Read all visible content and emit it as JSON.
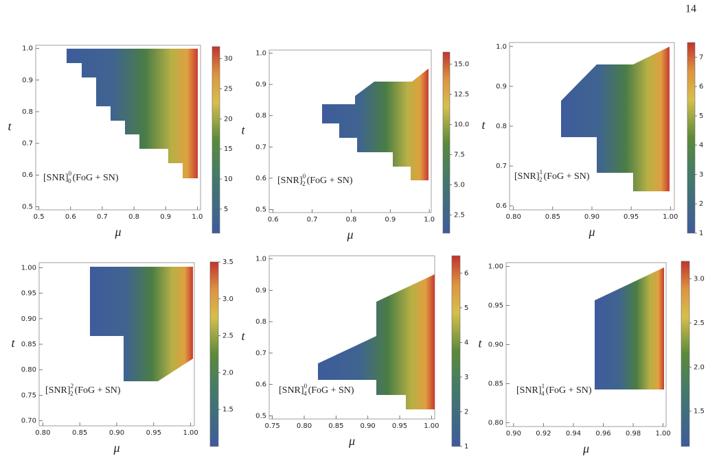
{
  "page_number": "14",
  "figure": {
    "panels": [
      {
        "label": {
          "base": "[SNR]",
          "sup": "0",
          "sub": "0",
          "tail": "(FoG + SN)"
        },
        "x_label": "μ",
        "y_label": "t",
        "xlim": [
          0.49,
          1.01
        ],
        "ylim": [
          0.49,
          1.01
        ],
        "xticks": [
          0.5,
          0.6,
          0.7,
          0.8,
          0.9,
          {
            "value": 1.0,
            "label": "1.0"
          }
        ],
        "yticks": [
          0.5,
          0.6,
          0.7,
          0.8,
          0.9,
          {
            "value": 1.0,
            "label": "1.0"
          }
        ],
        "colorbar": {
          "lim": [
            1,
            32
          ],
          "ticks": [
            5,
            10,
            15,
            20,
            25,
            30
          ]
        }
      },
      {
        "label": {
          "base": "[SNR]",
          "sup": "0",
          "sub": "2",
          "tail": "(FoG + SN)"
        },
        "x_label": "μ",
        "y_label": "t",
        "xlim": [
          0.59,
          1.005
        ],
        "ylim": [
          0.49,
          1.01
        ],
        "xticks": [
          0.6,
          0.7,
          0.8,
          0.9,
          {
            "value": 1.0,
            "label": "1.0"
          }
        ],
        "yticks": [
          0.5,
          0.6,
          0.7,
          0.8,
          0.9,
          {
            "value": 1.0,
            "label": "1.0"
          }
        ],
        "colorbar": {
          "lim": [
            1,
            16
          ],
          "ticks": [
            2.5,
            {
              "value": 5,
              "label": "5.0"
            },
            7.5,
            {
              "value": 10,
              "label": "10.0"
            },
            12.5,
            {
              "value": 15,
              "label": "15.0"
            }
          ]
        }
      },
      {
        "label": {
          "base": "[SNR]",
          "sup": "1",
          "sub": "2",
          "tail": "(FoG + SN)"
        },
        "x_label": "μ",
        "y_label": "t",
        "xlim": [
          0.795,
          1.005
        ],
        "ylim": [
          0.59,
          1.01
        ],
        "xticks": [
          {
            "value": 0.8,
            "label": "0.80"
          },
          0.85,
          {
            "value": 0.9,
            "label": "0.90"
          },
          0.95,
          {
            "value": 1.0,
            "label": "1.00"
          }
        ],
        "yticks": [
          0.6,
          0.7,
          0.8,
          0.9,
          {
            "value": 1.0,
            "label": "1.0"
          }
        ],
        "colorbar": {
          "lim": [
            1,
            7.5
          ],
          "ticks": [
            1,
            2,
            3,
            4,
            5,
            6,
            7
          ]
        }
      },
      {
        "label": {
          "base": "[SNR]",
          "sup": "2",
          "sub": "2",
          "tail": "(FoG + SN)"
        },
        "x_label": "μ",
        "y_label": "t",
        "xlim": [
          0.795,
          1.005
        ],
        "ylim": [
          0.69,
          1.01
        ],
        "xticks": [
          {
            "value": 0.8,
            "label": "0.80"
          },
          0.85,
          {
            "value": 0.9,
            "label": "0.90"
          },
          0.95,
          {
            "value": 1.0,
            "label": "1.00"
          }
        ],
        "yticks": [
          {
            "value": 0.7,
            "label": "0.70"
          },
          0.75,
          {
            "value": 0.8,
            "label": "0.80"
          },
          0.85,
          {
            "value": 0.9,
            "label": "0.90"
          },
          0.95,
          {
            "value": 1.0,
            "label": "1.00"
          }
        ],
        "colorbar": {
          "lim": [
            1,
            3.5
          ],
          "ticks": [
            1.5,
            {
              "value": 2,
              "label": "2.0"
            },
            2.5,
            {
              "value": 3,
              "label": "3.0"
            },
            3.5
          ]
        }
      },
      {
        "label": {
          "base": "[SNR]",
          "sup": "0",
          "sub": "4",
          "tail": "(FoG + SN)"
        },
        "x_label": "μ",
        "y_label": "t",
        "xlim": [
          0.745,
          1.005
        ],
        "ylim": [
          0.49,
          1.01
        ],
        "xticks": [
          0.75,
          {
            "value": 0.8,
            "label": "0.80"
          },
          0.85,
          {
            "value": 0.9,
            "label": "0.90"
          },
          0.95,
          {
            "value": 1.0,
            "label": "1.00"
          }
        ],
        "yticks": [
          0.5,
          0.6,
          0.7,
          0.8,
          0.9,
          {
            "value": 1.0,
            "label": "1.0"
          }
        ],
        "colorbar": {
          "lim": [
            1,
            6.5
          ],
          "ticks": [
            1,
            2,
            3,
            4,
            5,
            6
          ]
        }
      },
      {
        "label": {
          "base": "[SNR]",
          "sup": "1",
          "sub": "4",
          "tail": "(FoG + SN)"
        },
        "x_label": "μ",
        "y_label": "t",
        "xlim": [
          0.895,
          1.002
        ],
        "ylim": [
          0.795,
          1.005
        ],
        "xticks": [
          {
            "value": 0.9,
            "label": "0.90"
          },
          0.92,
          0.94,
          0.96,
          0.98,
          {
            "value": 1.0,
            "label": "1.00"
          }
        ],
        "yticks": [
          {
            "value": 0.8,
            "label": "0.80"
          },
          0.85,
          {
            "value": 0.9,
            "label": "0.90"
          },
          0.95,
          {
            "value": 1.0,
            "label": "1.00"
          }
        ],
        "colorbar": {
          "lim": [
            1.1,
            3.2
          ],
          "ticks": [
            1.5,
            {
              "value": 2,
              "label": "2.0"
            },
            2.5,
            {
              "value": 3,
              "label": "3.0"
            }
          ]
        }
      }
    ]
  }
}
